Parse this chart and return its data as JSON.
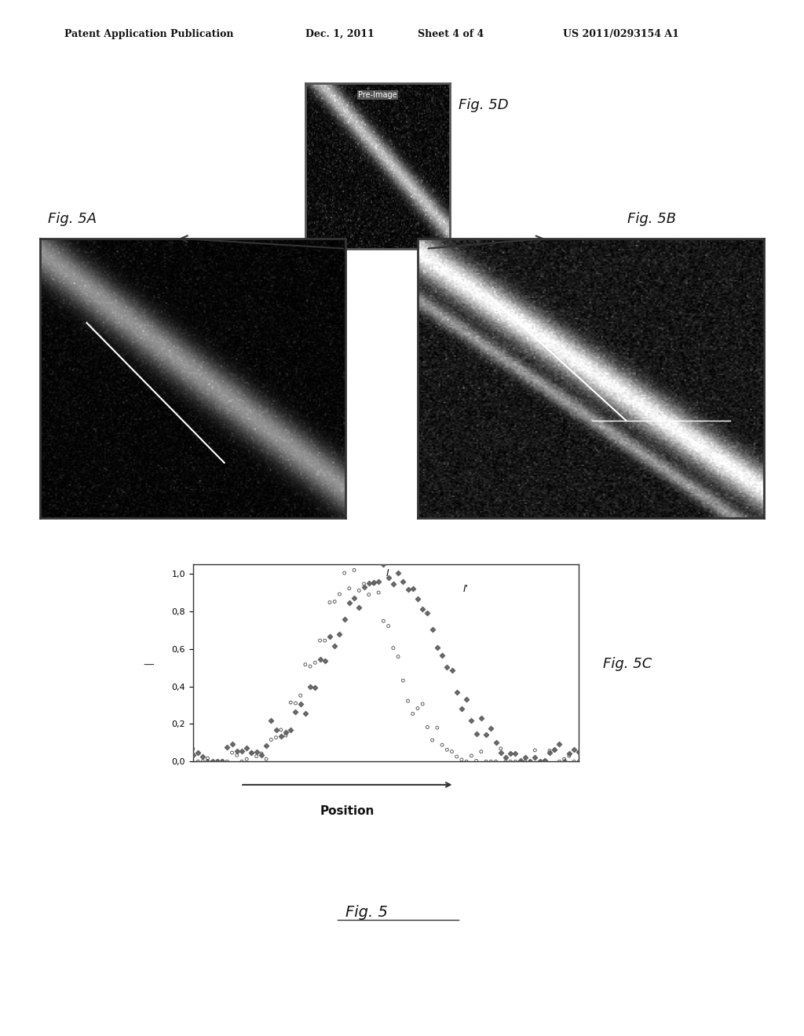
{
  "bg_color": "#f5f5f0",
  "page_bg": "#ffffff",
  "header_text": "Patent Application Publication",
  "header_date": "Dec. 1, 2011",
  "header_sheet": "Sheet 4 of 4",
  "header_patent": "US 2011/0293154 A1",
  "fig5A_label": "Fig. 5A",
  "fig5B_label": "Fig. 5B",
  "fig5C_label": "Fig. 5C",
  "fig5D_label": "Fig. 5D",
  "fig5_label": "Fig. 5",
  "xlabel": "Position",
  "ylabel": "I",
  "yticks": [
    "0,0",
    "0,2",
    "0,4",
    "0,6",
    "0,8",
    "1,0"
  ],
  "ytick_vals": [
    0.0,
    0.2,
    0.4,
    0.6,
    0.8,
    1.0
  ],
  "legend_I": "I",
  "legend_Iprime": "I'",
  "arrow_color": "#333333"
}
